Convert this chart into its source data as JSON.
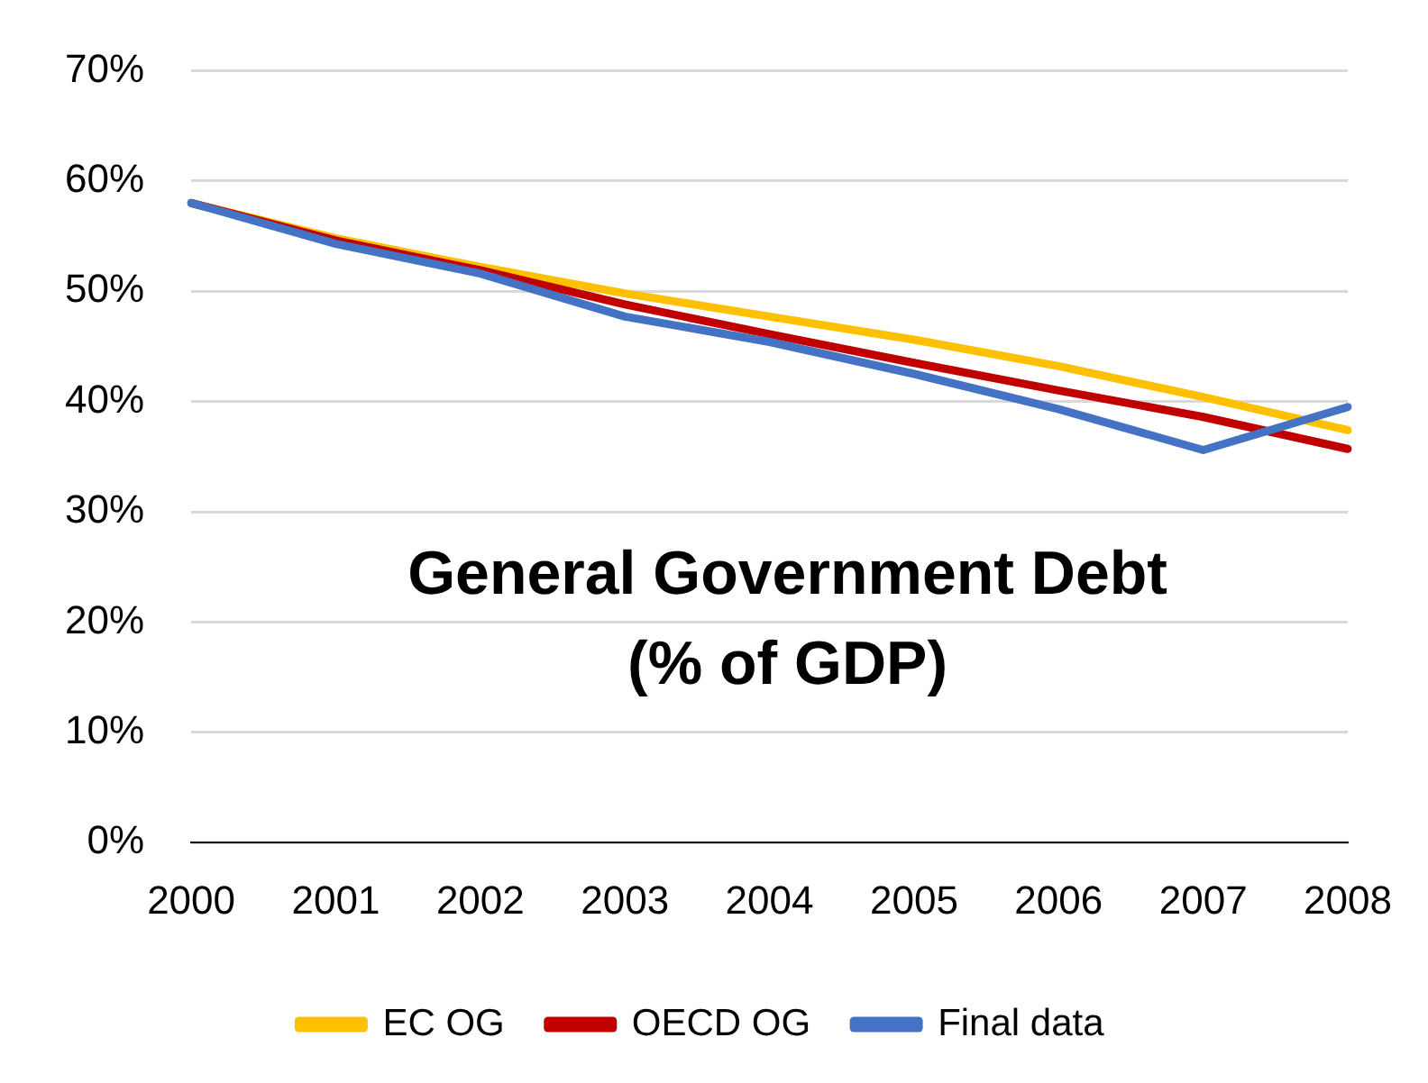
{
  "chart_data": {
    "type": "line",
    "title": "General Government Debt\n(% of GDP)",
    "categories": [
      "2000",
      "2001",
      "2002",
      "2003",
      "2004",
      "2005",
      "2006",
      "2007",
      "2008"
    ],
    "series": [
      {
        "name": "EC OG",
        "color": "#ffc000",
        "values": [
          58,
          54.8,
          52.2,
          49.8,
          47.7,
          45.6,
          43.2,
          40.4,
          37.4
        ]
      },
      {
        "name": "OECD OG",
        "color": "#c00000",
        "values": [
          58,
          54.6,
          51.9,
          48.8,
          46.1,
          43.5,
          41.0,
          38.6,
          35.7
        ]
      },
      {
        "name": "Final data",
        "color": "#4472c4",
        "values": [
          58,
          54.3,
          51.6,
          47.7,
          45.4,
          42.5,
          39.3,
          35.6,
          39.5
        ]
      }
    ],
    "ylim": [
      0,
      70
    ],
    "yticks": [
      {
        "value": 0,
        "label": "0%"
      },
      {
        "value": 10,
        "label": "10%"
      },
      {
        "value": 20,
        "label": "20%"
      },
      {
        "value": 30,
        "label": "30%"
      },
      {
        "value": 40,
        "label": "40%"
      },
      {
        "value": 50,
        "label": "50%"
      },
      {
        "value": 60,
        "label": "60%"
      },
      {
        "value": 70,
        "label": "70%"
      }
    ],
    "grid": "y",
    "legend": "bottom",
    "marker": "none",
    "line_style": "solid"
  }
}
